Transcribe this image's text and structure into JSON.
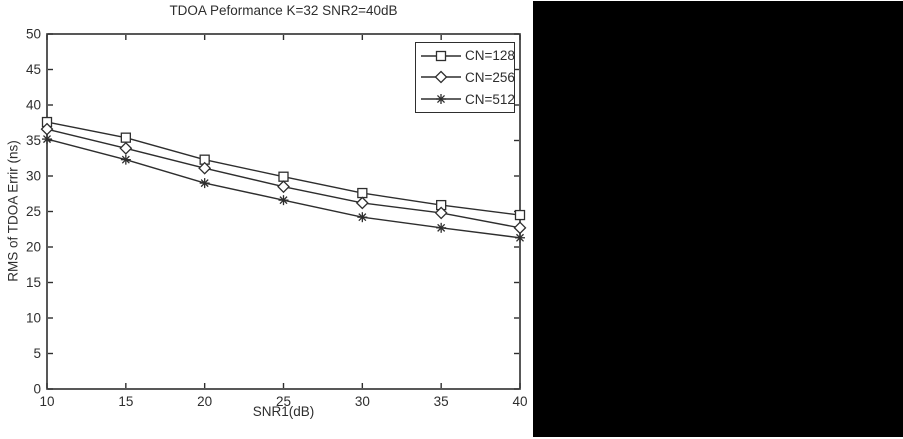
{
  "colors": {
    "ink": "#2e2e2e",
    "background": "#ffffff",
    "side_panel": "#000000"
  },
  "chart_data": {
    "type": "line",
    "title": "TDOA Peformance K=32 SNR2=40dB",
    "xlabel": "SNR1(dB)",
    "ylabel": "RMS of TDOA Errir (ns)",
    "x": [
      10,
      15,
      20,
      25,
      30,
      35,
      40
    ],
    "xlim": [
      10,
      40
    ],
    "ylim": [
      0,
      50
    ],
    "xticks": [
      10,
      15,
      20,
      25,
      30,
      35,
      40
    ],
    "yticks": [
      0,
      5,
      10,
      15,
      20,
      25,
      30,
      35,
      40,
      45,
      50
    ],
    "grid": false,
    "box": true,
    "line_color": "#2e2e2e",
    "legend_position": "top-right-inside",
    "series": [
      {
        "name": "CN=128",
        "marker": "square",
        "values": [
          37.6,
          35.4,
          32.3,
          29.9,
          27.6,
          25.9,
          24.5
        ]
      },
      {
        "name": "CN=256",
        "marker": "diamond",
        "values": [
          36.6,
          33.9,
          31.1,
          28.5,
          26.2,
          24.8,
          22.7
        ]
      },
      {
        "name": "CN=512",
        "marker": "star",
        "values": [
          35.2,
          32.3,
          29.0,
          26.6,
          24.2,
          22.7,
          21.3
        ]
      }
    ]
  }
}
